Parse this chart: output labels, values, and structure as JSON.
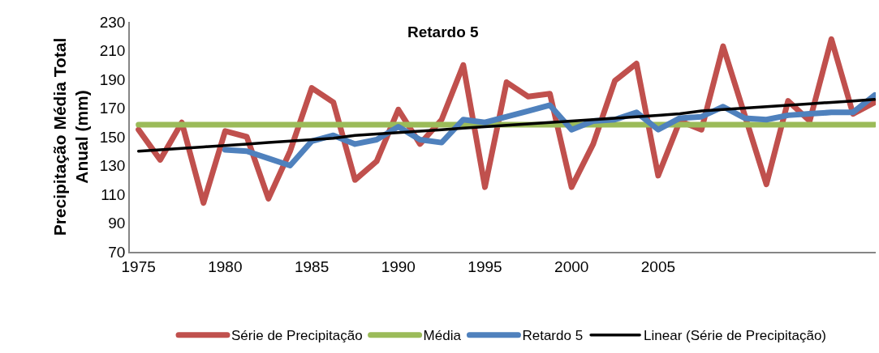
{
  "chart_data": {
    "type": "line",
    "title": "Retardo 5",
    "ylabel": "Precipitação Média Total\nAnual (mm)",
    "categories": [
      "1975",
      null,
      null,
      null,
      "1980",
      null,
      null,
      null,
      "1985",
      null,
      null,
      null,
      "1990",
      null,
      null,
      null,
      "1995",
      null,
      null,
      null,
      "2000",
      null,
      null,
      null,
      "2005",
      null,
      null,
      null,
      null,
      null,
      null,
      null,
      null,
      null,
      null
    ],
    "series": [
      {
        "name": "Série de Precipitação",
        "color": "#c0504d",
        "values": [
          155,
          134,
          160,
          104,
          154,
          150,
          107,
          140,
          184,
          174,
          120,
          133,
          169,
          145,
          162,
          200,
          115,
          188,
          178,
          180,
          115,
          145,
          189,
          201,
          123,
          161,
          155,
          213,
          165,
          117,
          175,
          161,
          218,
          166,
          174
        ]
      },
      {
        "name": "Média",
        "color": "#9bbb59",
        "values": [
          158.5,
          158.5,
          158.5,
          158.5,
          158.5,
          158.5,
          158.5,
          158.5,
          158.5,
          158.5,
          158.5,
          158.5,
          158.5,
          158.5,
          158.5,
          158.5,
          158.5,
          158.5,
          158.5,
          158.5,
          158.5,
          158.5,
          158.5,
          158.5,
          158.5,
          158.5,
          158.5,
          158.5,
          158.5,
          158.5,
          158.5,
          158.5,
          158.5,
          158.5,
          158.5
        ]
      },
      {
        "name": "Retardo 5",
        "color": "#4f81bd",
        "values": [
          null,
          null,
          null,
          null,
          141,
          140,
          135,
          130,
          147,
          151,
          145,
          148,
          157,
          148,
          146,
          162,
          160,
          164,
          168,
          172,
          155,
          161,
          162,
          167,
          155,
          163,
          164,
          171,
          163,
          162,
          165,
          166,
          167,
          167,
          179
        ]
      },
      {
        "name": "Linear (Série de Precipitação)",
        "color": "#000000",
        "values": [
          140,
          141,
          142,
          143,
          144,
          145,
          146,
          147,
          148,
          149,
          151,
          152,
          153,
          154,
          155,
          156,
          157,
          158,
          159,
          160,
          161,
          162,
          163,
          164,
          165,
          166,
          168,
          169,
          170,
          171,
          172,
          173,
          174,
          175,
          176
        ]
      }
    ],
    "ylim": [
      70,
      230
    ],
    "yticks": [
      70,
      90,
      110,
      130,
      150,
      170,
      190,
      210,
      230
    ],
    "legend": "bottom",
    "marker": "none",
    "line_style": "solid"
  }
}
